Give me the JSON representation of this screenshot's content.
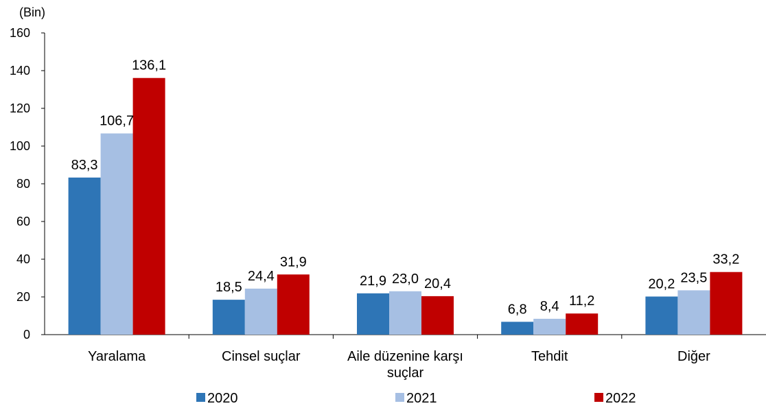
{
  "chart_data": {
    "type": "bar",
    "unit_label": "(Bin)",
    "categories": [
      [
        "Yaralama"
      ],
      [
        "Cinsel suçlar"
      ],
      [
        "Aile düzenine karşı",
        "suçlar"
      ],
      [
        "Tehdit"
      ],
      [
        "Diğer"
      ]
    ],
    "series": [
      {
        "name": "2020",
        "color": "#2e75b6",
        "values": [
          83.3,
          18.5,
          21.9,
          6.8,
          20.2
        ],
        "labels": [
          "83,3",
          "18,5",
          "21,9",
          "6,8",
          "20,2"
        ]
      },
      {
        "name": "2021",
        "color": "#a6bfe3",
        "values": [
          106.7,
          24.4,
          23.0,
          8.4,
          23.5
        ],
        "labels": [
          "106,7",
          "24,4",
          "23,0",
          "8,4",
          "23,5"
        ]
      },
      {
        "name": "2022",
        "color": "#c00000",
        "values": [
          136.1,
          31.9,
          20.4,
          11.2,
          33.2
        ],
        "labels": [
          "136,1",
          "31,9",
          "20,4",
          "11,2",
          "33,2"
        ]
      }
    ],
    "ylim": [
      0,
      160
    ],
    "yticks": [
      "0",
      "20",
      "40",
      "60",
      "80",
      "100",
      "120",
      "140",
      "160"
    ],
    "grid": false,
    "legend_position": "bottom"
  }
}
